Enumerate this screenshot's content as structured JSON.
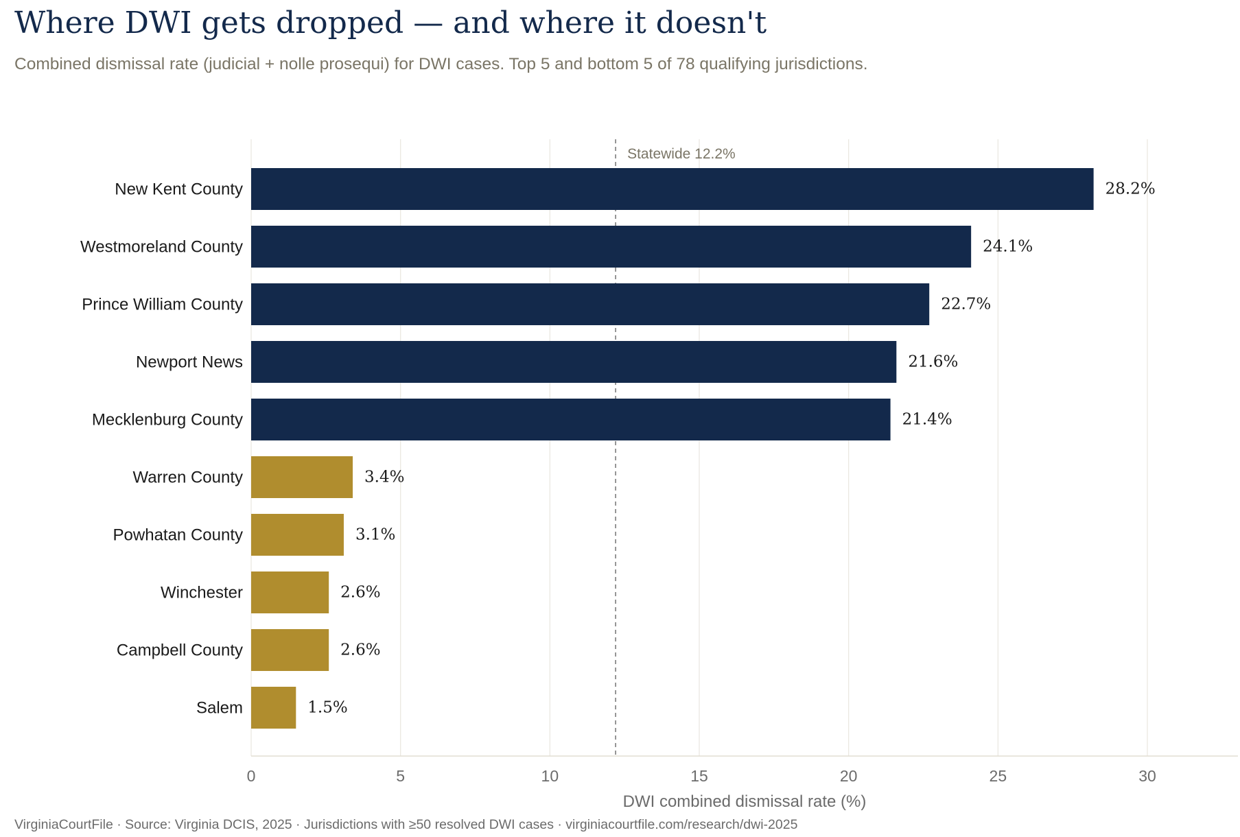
{
  "header": {
    "title": "Where DWI gets dropped — and where it doesn't",
    "subtitle": "Combined dismissal rate (judicial + nolle prosequi) for DWI cases. Top 5 and bottom 5 of 78 qualifying jurisdictions."
  },
  "footer": {
    "text": "VirginiaCourtFile · Source: Virginia DCIS, 2025 · Jurisdictions with ≥50 resolved DWI cases · virginiacourtfile.com/research/dwi-2025"
  },
  "colors": {
    "top": "#13294b",
    "bottom": "#b08d2e",
    "grid": "#ebe8e1",
    "reference": "#8a8a8a"
  },
  "chart_data": {
    "type": "bar",
    "orientation": "horizontal",
    "xlabel": "DWI combined dismissal rate (%)",
    "xlim": [
      0,
      33
    ],
    "xticks": [
      0,
      5,
      10,
      15,
      20,
      25,
      30
    ],
    "grid": true,
    "reference_line": {
      "value": 12.2,
      "label": "Statewide 12.2%"
    },
    "categories": [
      "New Kent County",
      "Westmoreland County",
      "Prince William County",
      "Newport News",
      "Mecklenburg County",
      "Warren County",
      "Powhatan County",
      "Winchester",
      "Campbell County",
      "Salem"
    ],
    "values": [
      28.2,
      24.1,
      22.7,
      21.6,
      21.4,
      3.4,
      3.1,
      2.6,
      2.6,
      1.5
    ],
    "value_labels": [
      "28.2%",
      "24.1%",
      "22.7%",
      "21.6%",
      "21.4%",
      "3.4%",
      "3.1%",
      "2.6%",
      "2.6%",
      "1.5%"
    ],
    "groups": [
      "top",
      "top",
      "top",
      "top",
      "top",
      "bottom",
      "bottom",
      "bottom",
      "bottom",
      "bottom"
    ]
  }
}
